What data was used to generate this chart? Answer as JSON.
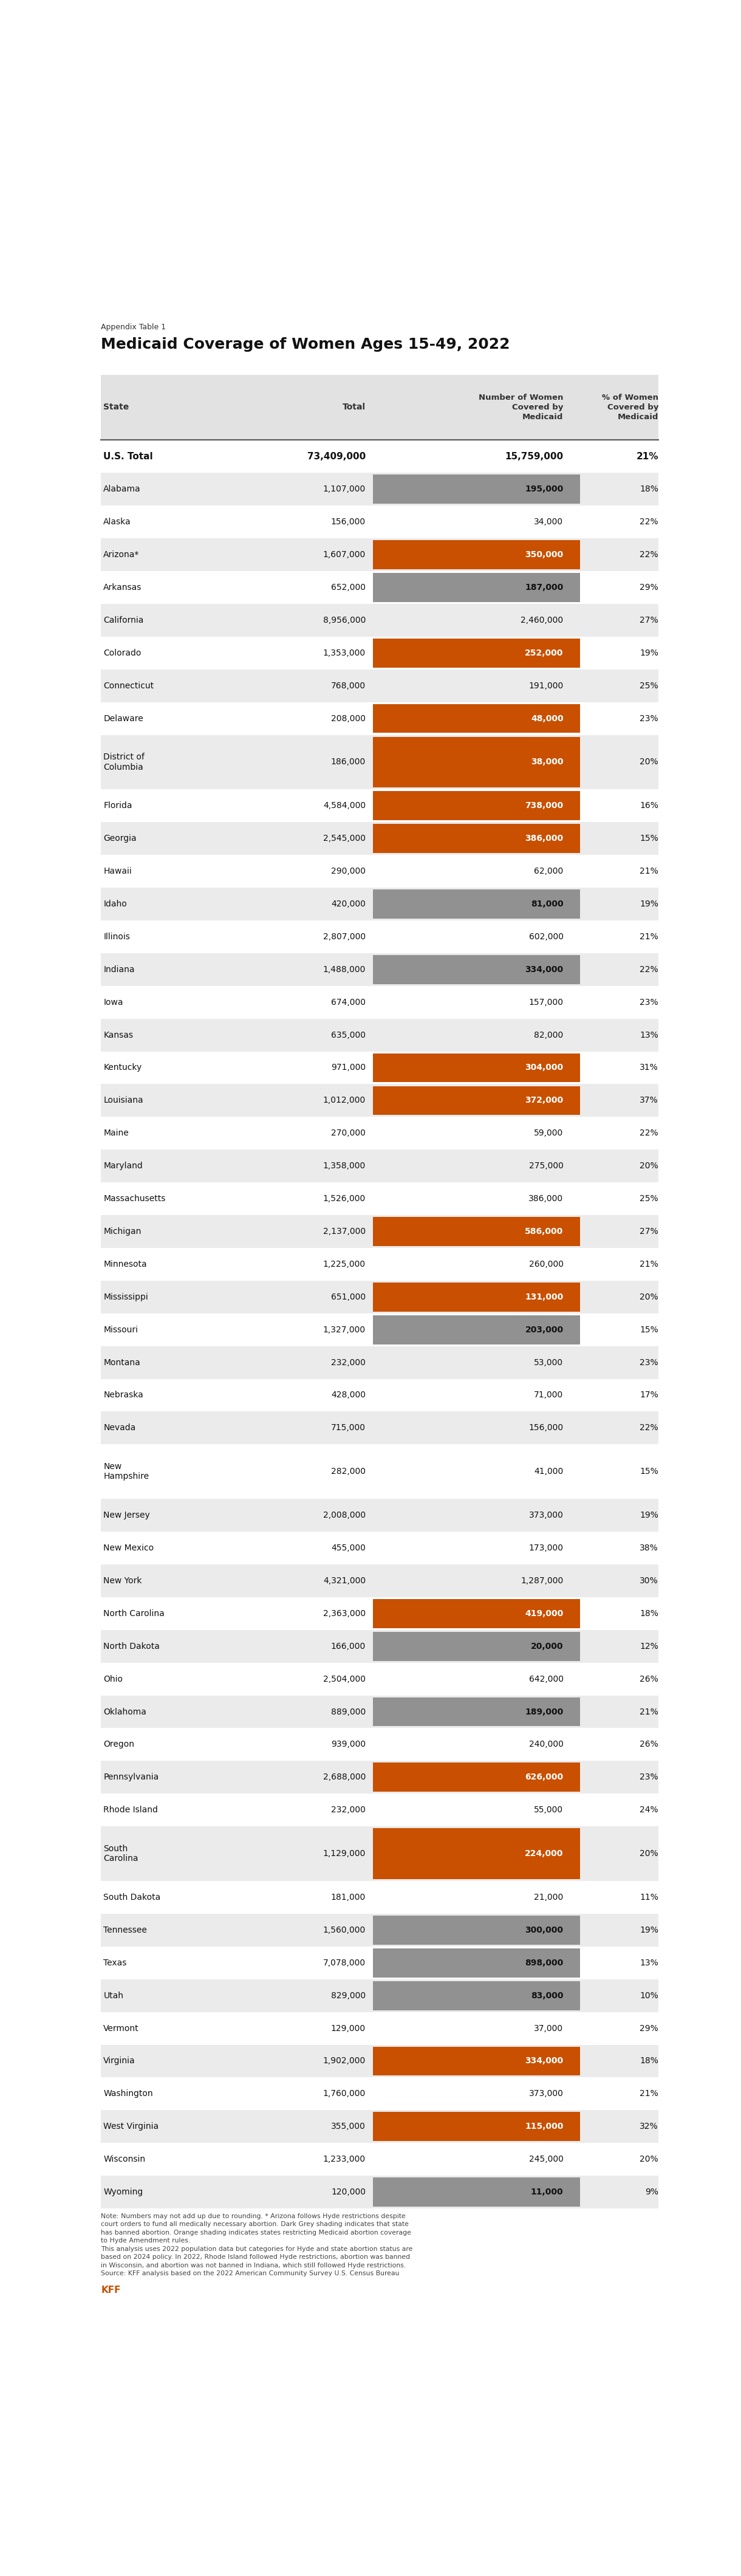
{
  "appendix_label": "Appendix Table 1",
  "title": "Medicaid Coverage of Women Ages 15-49, 2022",
  "rows": [
    {
      "state": "U.S. Total",
      "total": "73,409,000",
      "medicaid": "15,759,000",
      "pct": "21%",
      "highlight": "none",
      "bold": true
    },
    {
      "state": "Alabama",
      "total": "1,107,000",
      "medicaid": "195,000",
      "pct": "18%",
      "highlight": "dark_grey"
    },
    {
      "state": "Alaska",
      "total": "156,000",
      "medicaid": "34,000",
      "pct": "22%",
      "highlight": "none"
    },
    {
      "state": "Arizona*",
      "total": "1,607,000",
      "medicaid": "350,000",
      "pct": "22%",
      "highlight": "orange"
    },
    {
      "state": "Arkansas",
      "total": "652,000",
      "medicaid": "187,000",
      "pct": "29%",
      "highlight": "dark_grey"
    },
    {
      "state": "California",
      "total": "8,956,000",
      "medicaid": "2,460,000",
      "pct": "27%",
      "highlight": "none"
    },
    {
      "state": "Colorado",
      "total": "1,353,000",
      "medicaid": "252,000",
      "pct": "19%",
      "highlight": "orange"
    },
    {
      "state": "Connecticut",
      "total": "768,000",
      "medicaid": "191,000",
      "pct": "25%",
      "highlight": "none"
    },
    {
      "state": "Delaware",
      "total": "208,000",
      "medicaid": "48,000",
      "pct": "23%",
      "highlight": "orange"
    },
    {
      "state": "District of\nColumbia",
      "total": "186,000",
      "medicaid": "38,000",
      "pct": "20%",
      "highlight": "orange"
    },
    {
      "state": "Florida",
      "total": "4,584,000",
      "medicaid": "738,000",
      "pct": "16%",
      "highlight": "orange"
    },
    {
      "state": "Georgia",
      "total": "2,545,000",
      "medicaid": "386,000",
      "pct": "15%",
      "highlight": "orange"
    },
    {
      "state": "Hawaii",
      "total": "290,000",
      "medicaid": "62,000",
      "pct": "21%",
      "highlight": "none"
    },
    {
      "state": "Idaho",
      "total": "420,000",
      "medicaid": "81,000",
      "pct": "19%",
      "highlight": "dark_grey"
    },
    {
      "state": "Illinois",
      "total": "2,807,000",
      "medicaid": "602,000",
      "pct": "21%",
      "highlight": "none"
    },
    {
      "state": "Indiana",
      "total": "1,488,000",
      "medicaid": "334,000",
      "pct": "22%",
      "highlight": "dark_grey"
    },
    {
      "state": "Iowa",
      "total": "674,000",
      "medicaid": "157,000",
      "pct": "23%",
      "highlight": "none"
    },
    {
      "state": "Kansas",
      "total": "635,000",
      "medicaid": "82,000",
      "pct": "13%",
      "highlight": "none"
    },
    {
      "state": "Kentucky",
      "total": "971,000",
      "medicaid": "304,000",
      "pct": "31%",
      "highlight": "orange"
    },
    {
      "state": "Louisiana",
      "total": "1,012,000",
      "medicaid": "372,000",
      "pct": "37%",
      "highlight": "orange"
    },
    {
      "state": "Maine",
      "total": "270,000",
      "medicaid": "59,000",
      "pct": "22%",
      "highlight": "none"
    },
    {
      "state": "Maryland",
      "total": "1,358,000",
      "medicaid": "275,000",
      "pct": "20%",
      "highlight": "none"
    },
    {
      "state": "Massachusetts",
      "total": "1,526,000",
      "medicaid": "386,000",
      "pct": "25%",
      "highlight": "none"
    },
    {
      "state": "Michigan",
      "total": "2,137,000",
      "medicaid": "586,000",
      "pct": "27%",
      "highlight": "orange"
    },
    {
      "state": "Minnesota",
      "total": "1,225,000",
      "medicaid": "260,000",
      "pct": "21%",
      "highlight": "none"
    },
    {
      "state": "Mississippi",
      "total": "651,000",
      "medicaid": "131,000",
      "pct": "20%",
      "highlight": "orange"
    },
    {
      "state": "Missouri",
      "total": "1,327,000",
      "medicaid": "203,000",
      "pct": "15%",
      "highlight": "dark_grey"
    },
    {
      "state": "Montana",
      "total": "232,000",
      "medicaid": "53,000",
      "pct": "23%",
      "highlight": "none"
    },
    {
      "state": "Nebraska",
      "total": "428,000",
      "medicaid": "71,000",
      "pct": "17%",
      "highlight": "none"
    },
    {
      "state": "Nevada",
      "total": "715,000",
      "medicaid": "156,000",
      "pct": "22%",
      "highlight": "none"
    },
    {
      "state": "New\nHampshire",
      "total": "282,000",
      "medicaid": "41,000",
      "pct": "15%",
      "highlight": "none"
    },
    {
      "state": "New Jersey",
      "total": "2,008,000",
      "medicaid": "373,000",
      "pct": "19%",
      "highlight": "none"
    },
    {
      "state": "New Mexico",
      "total": "455,000",
      "medicaid": "173,000",
      "pct": "38%",
      "highlight": "none"
    },
    {
      "state": "New York",
      "total": "4,321,000",
      "medicaid": "1,287,000",
      "pct": "30%",
      "highlight": "none"
    },
    {
      "state": "North Carolina",
      "total": "2,363,000",
      "medicaid": "419,000",
      "pct": "18%",
      "highlight": "orange"
    },
    {
      "state": "North Dakota",
      "total": "166,000",
      "medicaid": "20,000",
      "pct": "12%",
      "highlight": "dark_grey"
    },
    {
      "state": "Ohio",
      "total": "2,504,000",
      "medicaid": "642,000",
      "pct": "26%",
      "highlight": "none"
    },
    {
      "state": "Oklahoma",
      "total": "889,000",
      "medicaid": "189,000",
      "pct": "21%",
      "highlight": "dark_grey"
    },
    {
      "state": "Oregon",
      "total": "939,000",
      "medicaid": "240,000",
      "pct": "26%",
      "highlight": "none"
    },
    {
      "state": "Pennsylvania",
      "total": "2,688,000",
      "medicaid": "626,000",
      "pct": "23%",
      "highlight": "orange"
    },
    {
      "state": "Rhode Island",
      "total": "232,000",
      "medicaid": "55,000",
      "pct": "24%",
      "highlight": "none"
    },
    {
      "state": "South\nCarolina",
      "total": "1,129,000",
      "medicaid": "224,000",
      "pct": "20%",
      "highlight": "orange"
    },
    {
      "state": "South Dakota",
      "total": "181,000",
      "medicaid": "21,000",
      "pct": "11%",
      "highlight": "none"
    },
    {
      "state": "Tennessee",
      "total": "1,560,000",
      "medicaid": "300,000",
      "pct": "19%",
      "highlight": "dark_grey"
    },
    {
      "state": "Texas",
      "total": "7,078,000",
      "medicaid": "898,000",
      "pct": "13%",
      "highlight": "dark_grey"
    },
    {
      "state": "Utah",
      "total": "829,000",
      "medicaid": "83,000",
      "pct": "10%",
      "highlight": "dark_grey"
    },
    {
      "state": "Vermont",
      "total": "129,000",
      "medicaid": "37,000",
      "pct": "29%",
      "highlight": "none"
    },
    {
      "state": "Virginia",
      "total": "1,902,000",
      "medicaid": "334,000",
      "pct": "18%",
      "highlight": "orange"
    },
    {
      "state": "Washington",
      "total": "1,760,000",
      "medicaid": "373,000",
      "pct": "21%",
      "highlight": "none"
    },
    {
      "state": "West Virginia",
      "total": "355,000",
      "medicaid": "115,000",
      "pct": "32%",
      "highlight": "orange"
    },
    {
      "state": "Wisconsin",
      "total": "1,233,000",
      "medicaid": "245,000",
      "pct": "20%",
      "highlight": "none"
    },
    {
      "state": "Wyoming",
      "total": "120,000",
      "medicaid": "11,000",
      "pct": "9%",
      "highlight": "dark_grey"
    }
  ],
  "footer_lines": [
    "Note: Numbers may not add up due to rounding. * Arizona follows Hyde restrictions despite",
    "court orders to fund all medically necessary abortion. Dark Grey shading indicates that state",
    "has banned abortion. Orange shading indicates states restricting Medicaid abortion coverage",
    "to Hyde Amendment rules.",
    "This analysis uses 2022 population data but categories for Hyde and state abortion status are",
    "based on 2024 policy. In 2022, Rhode Island followed Hyde restrictions, abortion was banned",
    "in Wisconsin, and abortion was not banned in Indiana, which still followed Hyde restrictions.",
    "Source: KFF analysis based on the 2022 American Community Survey U.S. Census Bureau"
  ],
  "color_orange": "#C85000",
  "color_dark_grey": "#919191",
  "color_header_bg": "#E2E2E2",
  "color_row_light": "#EBEBEB",
  "color_row_white": "#FFFFFF"
}
